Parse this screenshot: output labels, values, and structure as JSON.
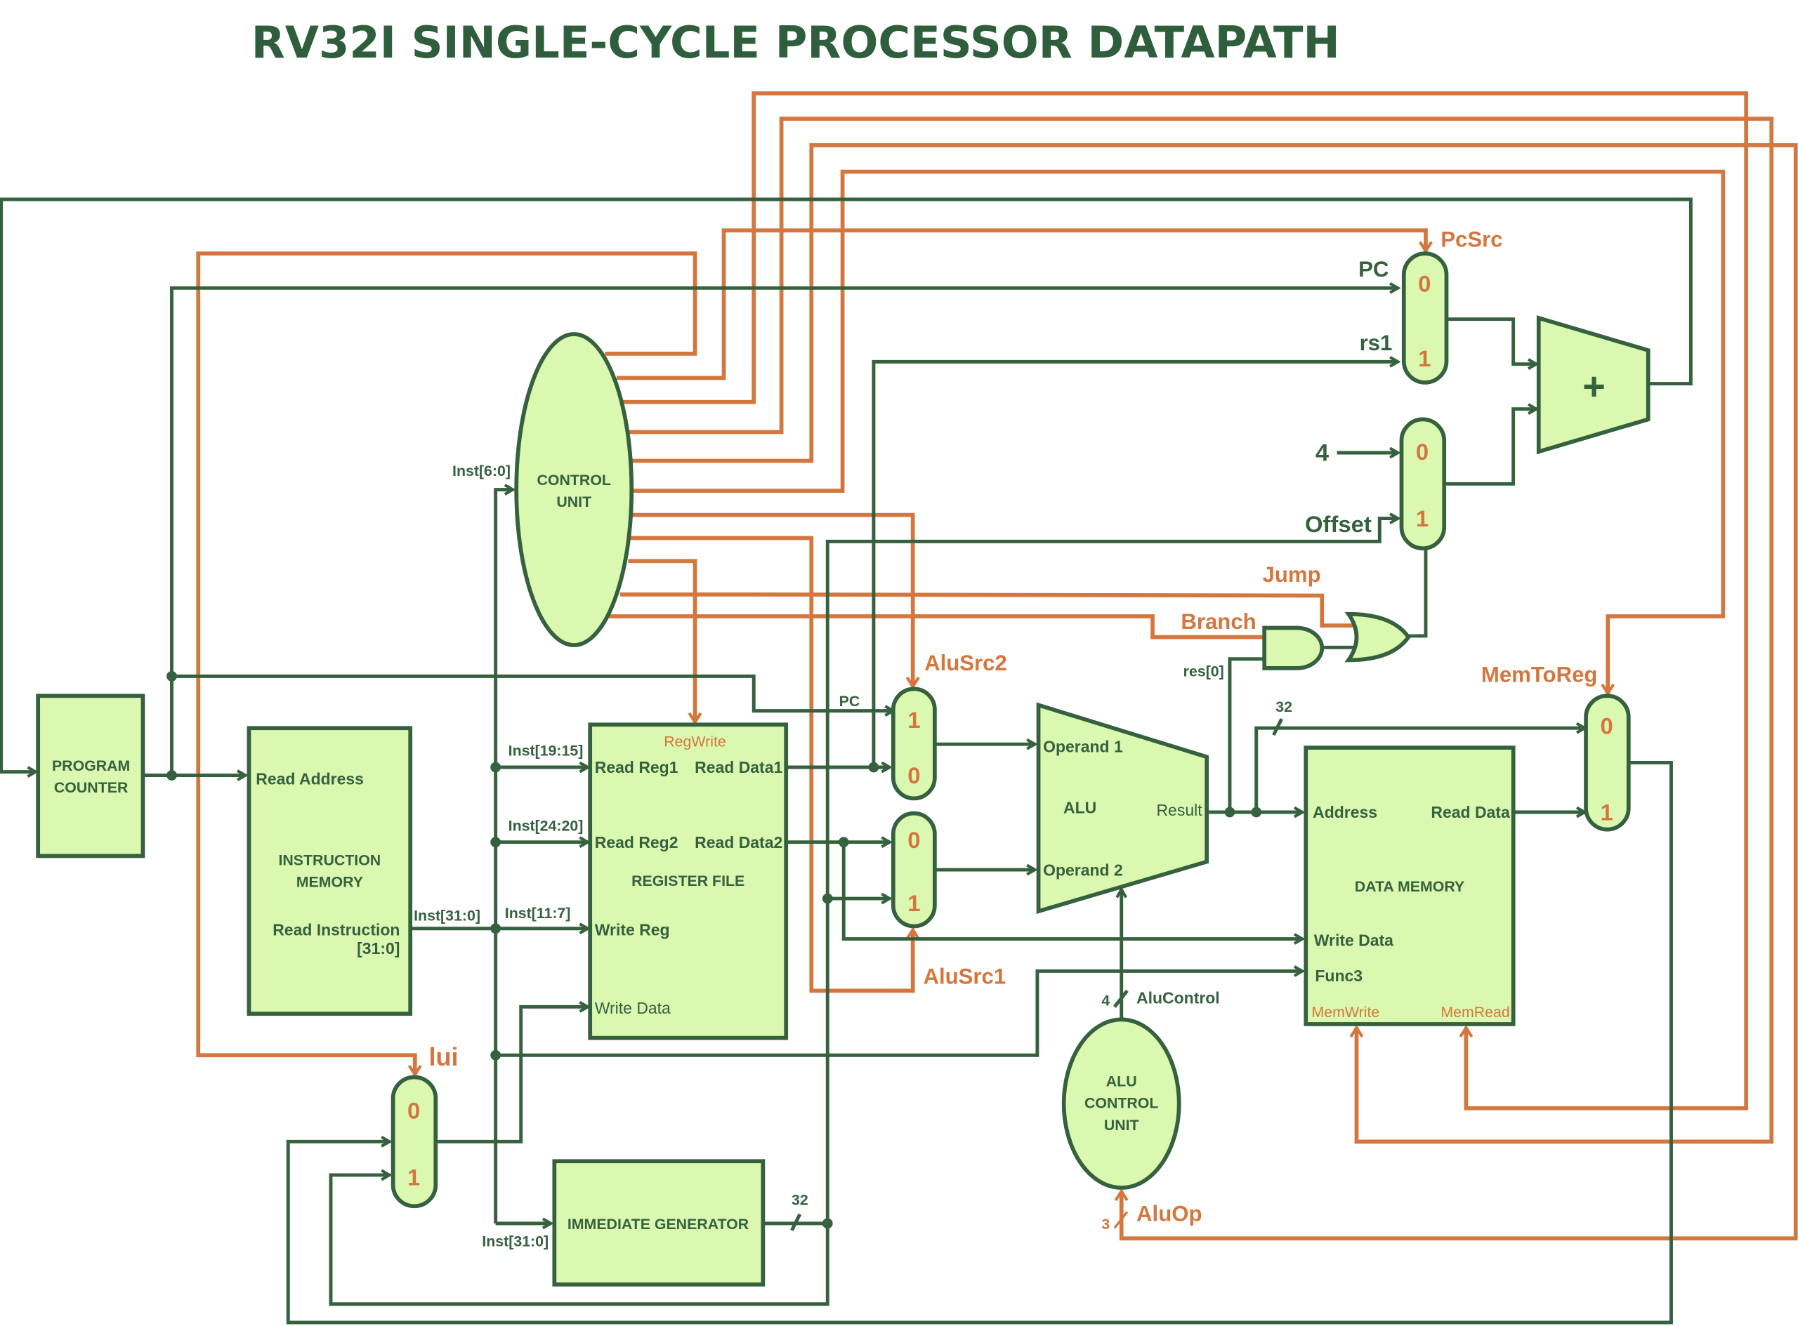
{
  "title": "RV32I SINGLE-CYCLE PROCESSOR DATAPATH",
  "colors": {
    "datapath": "#36613f",
    "control": "#d4773f",
    "block_fill": "#dbf8b0"
  },
  "blocks": {
    "program_counter": [
      "PROGRAM",
      "COUNTER"
    ],
    "instruction_memory": {
      "read_address": "Read Address",
      "name": [
        "INSTRUCTION",
        "MEMORY"
      ],
      "read_instruction": [
        "Read Instruction",
        "[31:0]"
      ]
    },
    "register_file": {
      "reg_write": "RegWrite",
      "read_reg1": "Read Reg1",
      "read_data1": "Read Data1",
      "read_reg2": "Read Reg2",
      "read_data2": "Read Data2",
      "name": "REGISTER FILE",
      "write_reg": "Write Reg",
      "write_data": "Write Data"
    },
    "control_unit": [
      "CONTROL",
      "UNIT"
    ],
    "immediate_generator": "IMMEDIATE GENERATOR",
    "alu": {
      "operand1": "Operand 1",
      "name": "ALU",
      "result": "Result",
      "operand2": "Operand 2"
    },
    "alu_control_unit": [
      "ALU",
      "CONTROL",
      "UNIT"
    ],
    "data_memory": {
      "address": "Address",
      "read_data": "Read Data",
      "name": "DATA MEMORY",
      "write_data": "Write Data",
      "func3": "Func3",
      "mem_write": "MemWrite",
      "mem_read": "MemRead"
    },
    "adder": "+"
  },
  "muxes": {
    "pcsrc": {
      "label": "PcSrc",
      "in0": "0",
      "in1": "1",
      "in0_name": "PC",
      "in1_name": "rs1"
    },
    "offset_mux": {
      "in0": "0",
      "in1": "1",
      "in0_name": "4",
      "in1_name": "Offset"
    },
    "alusrc2": {
      "label": "AluSrc2",
      "in_top": "1",
      "in_bottom": "0",
      "in_top_name": "PC"
    },
    "alusrc1": {
      "label": "AluSrc1",
      "in_top": "0",
      "in_bottom": "1"
    },
    "memtoreg": {
      "label": "MemToReg",
      "in0": "0",
      "in1": "1"
    },
    "lui": {
      "label": "lui",
      "in0": "0",
      "in1": "1"
    }
  },
  "signals": {
    "inst_6_0": "Inst[6:0]",
    "inst_19_15": "Inst[19:15]",
    "inst_24_20": "Inst[24:20]",
    "inst_31_0": "Inst[31:0]",
    "inst_11_7": "Inst[11:7]",
    "inst_31_0_imm": "Inst[31:0]",
    "imm_width": "32",
    "result_width": "32",
    "jump": "Jump",
    "branch": "Branch",
    "res0": "res[0]",
    "alucontrol_width": "4",
    "alucontrol": "AluControl",
    "aluop_width": "3",
    "aluop": "AluOp"
  }
}
